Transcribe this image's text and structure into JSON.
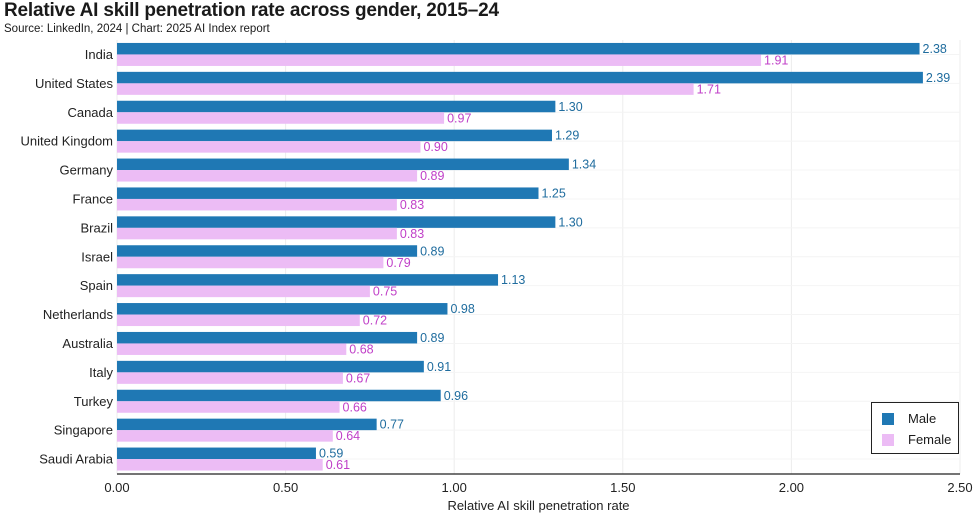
{
  "title": "Relative AI skill penetration rate across gender, 2015–24",
  "subtitle": "Source: LinkedIn, 2024 | Chart: 2025 AI Index report",
  "chart_data": {
    "type": "bar",
    "orientation": "horizontal",
    "title": "Relative AI skill penetration rate across gender, 2015–24",
    "xlabel": "Relative AI skill penetration rate",
    "ylabel": "",
    "xlim": [
      0,
      2.5
    ],
    "xticks": [
      "0.00",
      "0.50",
      "1.00",
      "1.50",
      "2.00",
      "2.50"
    ],
    "grid": true,
    "legend_position": "bottom-right",
    "categories": [
      "India",
      "United States",
      "Canada",
      "United Kingdom",
      "Germany",
      "France",
      "Brazil",
      "Israel",
      "Spain",
      "Netherlands",
      "Australia",
      "Italy",
      "Turkey",
      "Singapore",
      "Saudi Arabia"
    ],
    "series": [
      {
        "name": "Male",
        "color": "#1f78b4",
        "label_color": "#1f6c9e",
        "values": [
          2.38,
          2.39,
          1.3,
          1.29,
          1.34,
          1.25,
          1.3,
          0.89,
          1.13,
          0.98,
          0.89,
          0.91,
          0.96,
          0.77,
          0.59
        ],
        "labels": [
          "2.38",
          "2.39",
          "1.30",
          "1.29",
          "1.34",
          "1.25",
          "1.30",
          "0.89",
          "1.13",
          "0.98",
          "0.89",
          "0.91",
          "0.96",
          "0.77",
          "0.59"
        ]
      },
      {
        "name": "Female",
        "color": "#ecbcf5",
        "label_color": "#c040c8",
        "values": [
          1.91,
          1.71,
          0.97,
          0.9,
          0.89,
          0.83,
          0.83,
          0.79,
          0.75,
          0.72,
          0.68,
          0.67,
          0.66,
          0.64,
          0.61
        ],
        "labels": [
          "1.91",
          "1.71",
          "0.97",
          "0.90",
          "0.89",
          "0.83",
          "0.83",
          "0.79",
          "0.75",
          "0.72",
          "0.68",
          "0.67",
          "0.66",
          "0.64",
          "0.61"
        ]
      }
    ]
  }
}
